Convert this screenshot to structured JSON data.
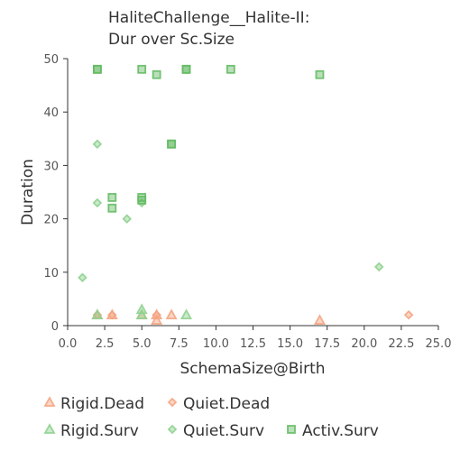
{
  "chart_data": {
    "type": "scatter",
    "title": [
      "HaliteChallenge__Halite-II:",
      "Dur over Sc.Size"
    ],
    "xlabel": "SchemaSize@Birth",
    "ylabel": "Duration",
    "xlim": [
      0,
      25
    ],
    "ylim": [
      0,
      50
    ],
    "xticks": [
      "0.0",
      "2.5",
      "5.0",
      "7.5",
      "10.0",
      "12.5",
      "15.0",
      "17.5",
      "20.0",
      "22.5",
      "25.0"
    ],
    "xtick_values": [
      0,
      2.5,
      5,
      7.5,
      10,
      12.5,
      15,
      17.5,
      20,
      22.5,
      25
    ],
    "yticks": [
      "0",
      "10",
      "20",
      "30",
      "40",
      "50"
    ],
    "ytick_values": [
      0,
      10,
      20,
      30,
      40,
      50
    ],
    "colors": {
      "Rigid.Dead": "#f4a582",
      "Quiet.Dead": "#f4a582",
      "Rigid.Surv": "#8fd18f",
      "Quiet.Surv": "#8fd18f",
      "Activ.Surv": "#66bb66",
      "dark_fill": "#7fb85f"
    },
    "series": [
      {
        "name": "Rigid.Dead",
        "marker": "triangle",
        "points": [
          [
            2,
            2
          ],
          [
            3,
            2
          ],
          [
            5,
            2
          ],
          [
            6,
            2
          ],
          [
            6,
            1
          ],
          [
            7,
            2
          ],
          [
            17,
            1
          ]
        ]
      },
      {
        "name": "Quiet.Dead",
        "marker": "diamond",
        "points": [
          [
            2,
            2
          ],
          [
            3,
            2
          ],
          [
            6,
            2
          ],
          [
            23,
            2
          ]
        ]
      },
      {
        "name": "Rigid.Surv",
        "marker": "triangle",
        "points": [
          [
            2,
            2
          ],
          [
            5,
            3
          ],
          [
            5,
            2
          ],
          [
            8,
            2
          ]
        ]
      },
      {
        "name": "Quiet.Surv",
        "marker": "diamond",
        "points": [
          [
            1,
            9
          ],
          [
            2,
            23
          ],
          [
            2,
            34
          ],
          [
            4,
            20
          ],
          [
            5,
            23
          ],
          [
            21,
            11
          ]
        ]
      },
      {
        "name": "Activ.Surv",
        "marker": "square",
        "points": [
          [
            2,
            48
          ],
          [
            2,
            48
          ],
          [
            3,
            24
          ],
          [
            3,
            22
          ],
          [
            5,
            48
          ],
          [
            5,
            24
          ],
          [
            5,
            23.5
          ],
          [
            6,
            47
          ],
          [
            7,
            34
          ],
          [
            7,
            34
          ],
          [
            8,
            48
          ],
          [
            8,
            48
          ],
          [
            11,
            48
          ],
          [
            17,
            47
          ]
        ]
      }
    ],
    "legend": [
      [
        "Rigid.Dead",
        "Quiet.Dead"
      ],
      [
        "Rigid.Surv",
        "Quiet.Surv",
        "Activ.Surv"
      ]
    ]
  }
}
